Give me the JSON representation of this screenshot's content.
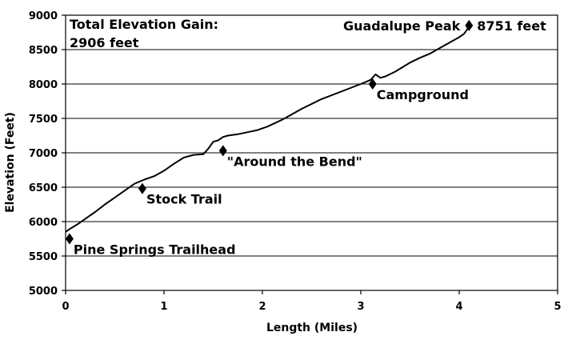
{
  "chart_data": {
    "type": "line",
    "title": "",
    "xlabel": "Length (Miles)",
    "ylabel": "Elevation (Feet)",
    "xlim": [
      0,
      5
    ],
    "ylim": [
      5000,
      9000
    ],
    "x_ticks": [
      "0",
      "1",
      "2",
      "3",
      "4",
      "5"
    ],
    "y_ticks": [
      "5000",
      "5500",
      "6000",
      "6500",
      "7000",
      "7500",
      "8000",
      "8500",
      "9000"
    ],
    "grid": "horizontal",
    "legend": "none",
    "line_color": "#000000",
    "series": [
      {
        "x": [
          0.0,
          0.05,
          0.12,
          0.2,
          0.3,
          0.4,
          0.5,
          0.6,
          0.7,
          0.8,
          0.9,
          1.0,
          1.05,
          1.1,
          1.2,
          1.3,
          1.4,
          1.45,
          1.5,
          1.55,
          1.6,
          1.65,
          1.75,
          1.85,
          1.95,
          2.05,
          2.2,
          2.4,
          2.6,
          2.8,
          3.0,
          3.1,
          3.15,
          3.2,
          3.25,
          3.35,
          3.5,
          3.6,
          3.7,
          3.8,
          3.9,
          4.0,
          4.05,
          4.1
        ],
        "y": [
          5850,
          5900,
          5960,
          6040,
          6140,
          6250,
          6350,
          6450,
          6550,
          6610,
          6660,
          6740,
          6790,
          6840,
          6930,
          6970,
          6980,
          7060,
          7160,
          7180,
          7230,
          7250,
          7270,
          7300,
          7330,
          7380,
          7480,
          7640,
          7780,
          7890,
          8000,
          8060,
          8140,
          8090,
          8110,
          8180,
          8310,
          8380,
          8440,
          8520,
          8600,
          8680,
          8730,
          8830
        ]
      }
    ],
    "points": [
      {
        "label": "Pine Springs Trailhead",
        "x": 0.04,
        "y": 5750
      },
      {
        "label": "Stock Trail",
        "x": 0.78,
        "y": 6480
      },
      {
        "label": "\"Around the Bend\"",
        "x": 1.6,
        "y": 7030
      },
      {
        "label": "Campground",
        "x": 3.12,
        "y": 8000
      },
      {
        "label": "Guadalupe Peak",
        "value_label": "8751 feet",
        "x": 4.1,
        "y": 8850
      }
    ],
    "annotations": {
      "gain_line1": "Total Elevation Gain:",
      "gain_line2": "2906 feet"
    }
  }
}
